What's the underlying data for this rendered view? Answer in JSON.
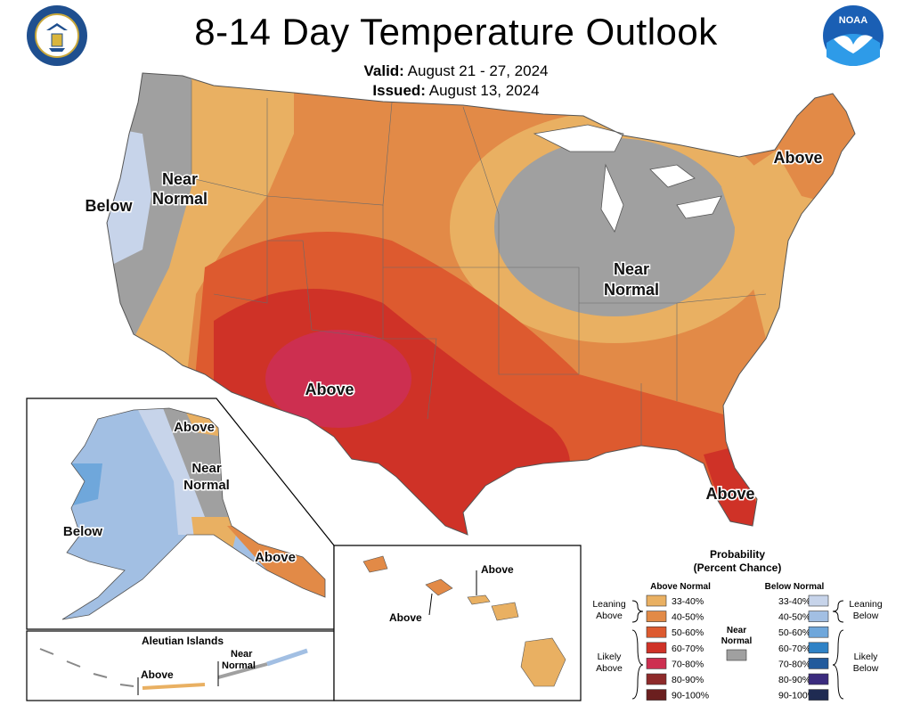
{
  "header": {
    "title": "8-14 Day Temperature Outlook",
    "valid_label": "Valid:",
    "valid_value": "August 21 - 27, 2024",
    "issued_label": "Issued:",
    "issued_value": "August 13, 2024",
    "left_logo": "doc-seal-icon",
    "right_logo": "noaa-logo-icon"
  },
  "map_labels": {
    "west_below": "Below",
    "west_near_1": "Near",
    "west_near_2": "Normal",
    "northeast_above": "Above",
    "midwest_near_1": "Near",
    "midwest_near_2": "Normal",
    "southwest_above": "Above",
    "florida_above": "Above"
  },
  "alaska": {
    "above_north": "Above",
    "near_1": "Near",
    "near_2": "Normal",
    "below": "Below",
    "above_se": "Above"
  },
  "aleutian": {
    "title": "Aleutian Islands",
    "above": "Above",
    "near_1": "Near",
    "near_2": "Normal"
  },
  "hawaii": {
    "above_1": "Above",
    "above_2": "Above"
  },
  "legend": {
    "title_1": "Probability",
    "title_2": "(Percent Chance)",
    "above_header": "Above Normal",
    "below_header": "Below Normal",
    "leaning_above_1": "Leaning",
    "leaning_above_2": "Above",
    "likely_above_1": "Likely",
    "likely_above_2": "Above",
    "leaning_below_1": "Leaning",
    "leaning_below_2": "Below",
    "likely_below_1": "Likely",
    "likely_below_2": "Below",
    "near_1": "Near",
    "near_2": "Normal",
    "ranges": [
      "33-40%",
      "40-50%",
      "50-60%",
      "60-70%",
      "70-80%",
      "80-90%",
      "90-100%"
    ],
    "above_colors": [
      "#e9b062",
      "#e28a47",
      "#dd5a2f",
      "#cf3227",
      "#cd2f50",
      "#8e2a2a",
      "#6b1f1f"
    ],
    "below_colors": [
      "#c7d4ea",
      "#a2bfe3",
      "#6fa7db",
      "#2f82c6",
      "#225a9c",
      "#3b2b7e",
      "#1f2b52"
    ],
    "near_color": "#a0a0a0"
  },
  "colors": {
    "above_33_40": "#e9b062",
    "above_40_50": "#e28a47",
    "above_50_60": "#dd5a2f",
    "above_60_70": "#cf3227",
    "above_70_80": "#cd2f50",
    "near_normal": "#a0a0a0",
    "below_33_40": "#c7d4ea",
    "below_40_50": "#a2bfe3",
    "below_50_60": "#6fa7db"
  }
}
